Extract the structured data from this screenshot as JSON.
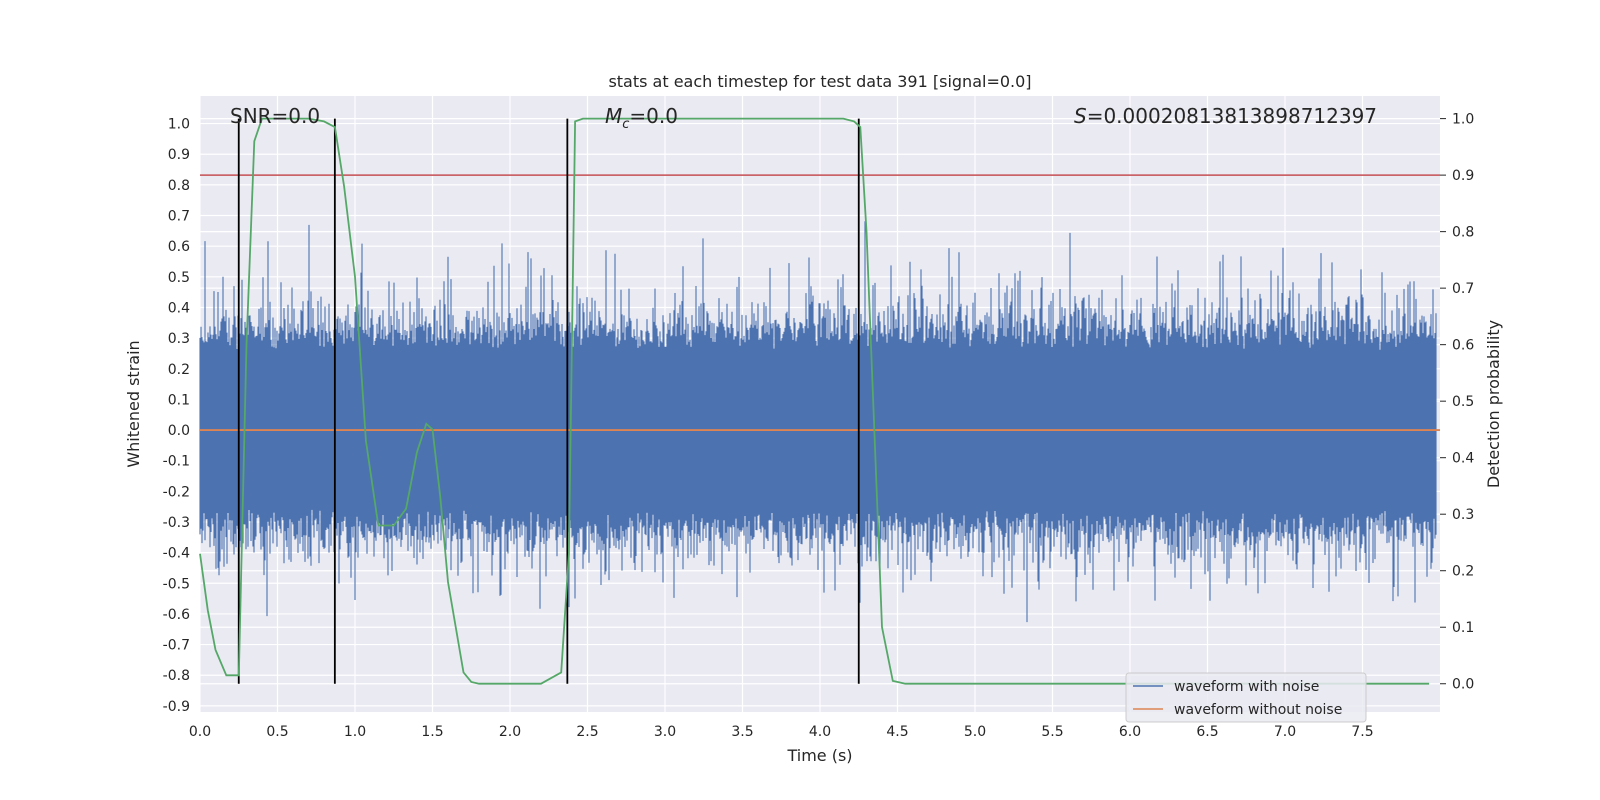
{
  "chart_data": {
    "type": "line",
    "title": "stats at each timestep for test data 391 [signal=0.0]",
    "xlabel": "Time (s)",
    "ylabel_left": "Whitened strain",
    "ylabel_right": "Detection probability",
    "xlim": [
      0.0,
      8.0
    ],
    "ylim_left": [
      -0.92,
      1.09
    ],
    "ylim_right": [
      -0.05,
      1.04
    ],
    "x_ticks": [
      "0.0",
      "0.5",
      "1.0",
      "1.5",
      "2.0",
      "2.5",
      "3.0",
      "3.5",
      "4.0",
      "4.5",
      "5.0",
      "5.5",
      "6.0",
      "6.5",
      "7.0",
      "7.5"
    ],
    "y_ticks_left": [
      "-0.9",
      "-0.8",
      "-0.7",
      "-0.6",
      "-0.5",
      "-0.4",
      "-0.3",
      "-0.2",
      "-0.1",
      "0.0",
      "0.1",
      "0.2",
      "0.3",
      "0.4",
      "0.5",
      "0.6",
      "0.7",
      "0.8",
      "0.9",
      "1.0"
    ],
    "y_ticks_right": [
      "0.0",
      "0.1",
      "0.2",
      "0.3",
      "0.4",
      "0.5",
      "0.6",
      "0.7",
      "0.8",
      "0.9",
      "1.0"
    ],
    "grid": true,
    "legend_position": "lower-right",
    "colors": {
      "noise": "#4c72b0",
      "clean": "#dd8452",
      "probability": "#55a868",
      "threshold": "#c44e52",
      "markers": "#000000",
      "background": "#eaeaf2"
    },
    "annotations": {
      "snr": "SNR=0.0",
      "mc_symbol": "M",
      "mc_sub": "c",
      "mc_value": "=0.0",
      "s_symbol": "S",
      "s_value": "=0.00020813813898712397"
    },
    "series": [
      {
        "name": "waveform with noise",
        "axis": "left",
        "description": "whitened strain with noise, roughly symmetric noise around 0 with amplitude up to ~1.0"
      },
      {
        "name": "waveform without noise",
        "axis": "left",
        "constant": 0.0
      },
      {
        "axis": "right",
        "x": [
          0.0,
          0.05,
          0.1,
          0.17,
          0.25,
          0.3,
          0.35,
          0.4,
          0.5,
          0.6,
          0.7,
          0.8,
          0.87,
          0.93,
          1.0,
          1.07,
          1.15,
          1.25,
          1.33,
          1.4,
          1.46,
          1.5,
          1.55,
          1.6,
          1.7,
          1.75,
          1.8,
          2.0,
          2.2,
          2.33,
          2.38,
          2.42,
          2.47,
          2.5,
          3.0,
          3.5,
          4.0,
          4.15,
          4.22,
          4.26,
          4.3,
          4.35,
          4.4,
          4.47,
          4.55,
          5.0,
          6.0,
          7.0,
          7.93
        ],
        "values": [
          0.23,
          0.13,
          0.06,
          0.015,
          0.015,
          0.6,
          0.96,
          1.0,
          1.0,
          1.0,
          1.0,
          0.995,
          0.985,
          0.88,
          0.72,
          0.43,
          0.28,
          0.28,
          0.31,
          0.41,
          0.46,
          0.45,
          0.33,
          0.18,
          0.02,
          0.003,
          0.0,
          0.0,
          0.0,
          0.02,
          0.23,
          0.995,
          1.0,
          1.0,
          1.0,
          1.0,
          1.0,
          1.0,
          0.995,
          0.985,
          0.8,
          0.45,
          0.1,
          0.005,
          0.0,
          0.0,
          0.0,
          0.0,
          0.0
        ]
      }
    ],
    "threshold_right": 0.9,
    "vertical_markers_x": [
      0.25,
      0.87,
      2.37,
      4.25
    ],
    "legend": [
      "waveform with noise",
      "waveform without noise"
    ]
  }
}
